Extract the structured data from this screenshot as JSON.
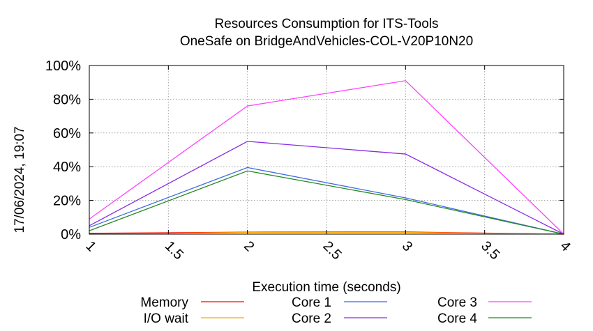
{
  "chart_data": {
    "type": "line",
    "title": "Resources Consumption for ITS-Tools",
    "subtitle": "OneSafe on BridgeAndVehicles-COL-V20P10N20",
    "xlabel": "Execution time (seconds)",
    "ylabel": "",
    "xlim": [
      1,
      4
    ],
    "ylim": [
      0,
      100
    ],
    "x_ticks": [
      "1",
      "1.5",
      "2",
      "2.5",
      "3",
      "3.5",
      "4"
    ],
    "x_tick_values": [
      1,
      1.5,
      2,
      2.5,
      3,
      3.5,
      4
    ],
    "y_ticks": [
      "0%",
      "20%",
      "40%",
      "60%",
      "80%",
      "100%"
    ],
    "y_tick_values": [
      0,
      20,
      40,
      60,
      80,
      100
    ],
    "grid": true,
    "legend_position": "bottom",
    "timestamp": "17/06/2024, 19:07",
    "x": [
      1,
      2,
      3,
      4
    ],
    "series": [
      {
        "name": "Memory",
        "color": "#ff0000",
        "values": [
          0.5,
          1.2,
          1.3,
          0
        ]
      },
      {
        "name": "I/O wait",
        "color": "#ffa500",
        "values": [
          0,
          1.0,
          1.0,
          0
        ]
      },
      {
        "name": "Core 1",
        "color": "#4169e1",
        "values": [
          4,
          39.5,
          21.5,
          0
        ]
      },
      {
        "name": "Core 2",
        "color": "#8a2be2",
        "values": [
          5,
          55,
          47.5,
          0
        ]
      },
      {
        "name": "Core 3",
        "color": "#ff40ff",
        "values": [
          9,
          76,
          91,
          0
        ]
      },
      {
        "name": "Core 4",
        "color": "#228b22",
        "values": [
          2,
          37.5,
          20.5,
          0
        ]
      }
    ]
  }
}
